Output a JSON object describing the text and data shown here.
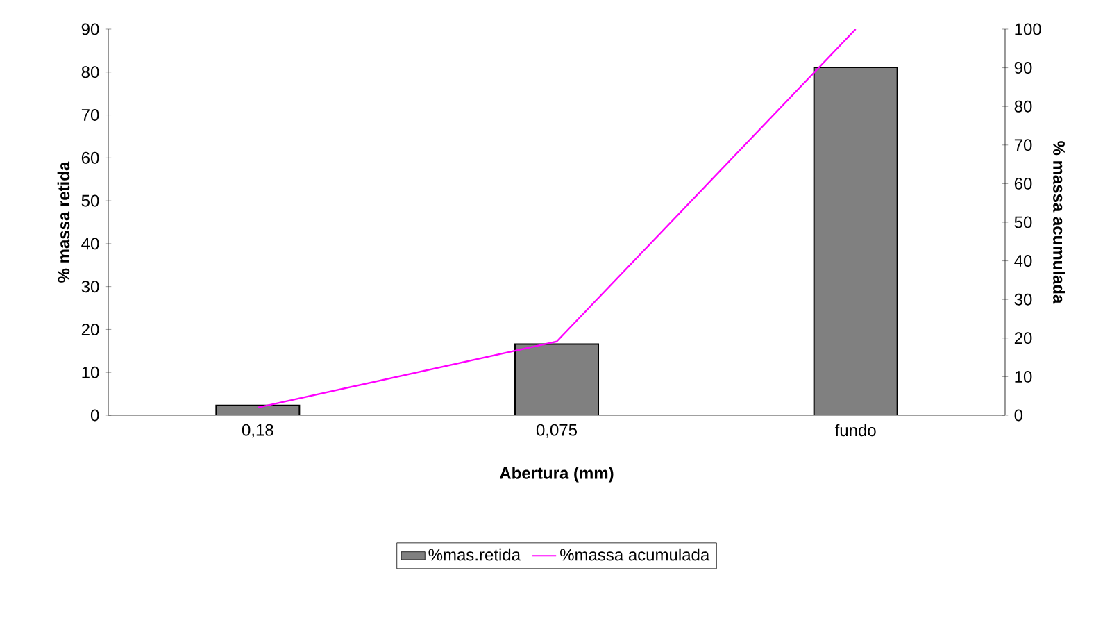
{
  "chart_data": {
    "type": "bar",
    "xlabel": "Abertura (mm)",
    "ylabel": "% massa retida",
    "y2label": "% massa acumulada",
    "categories": [
      "0,18",
      "0,075",
      "fundo"
    ],
    "series": [
      {
        "name": "%mas.retida",
        "color": "#808080",
        "values": [
          2.3,
          16.6,
          81.1
        ]
      },
      {
        "name": "%massa acumulada",
        "type": "line",
        "axis": "y2",
        "color": "#ff00ff",
        "values": [
          2.0,
          19.1,
          100
        ]
      }
    ],
    "ylim": [
      0,
      90
    ],
    "yticks": [
      0,
      10,
      20,
      30,
      40,
      50,
      60,
      70,
      80,
      90
    ],
    "y2lim": [
      0,
      100
    ],
    "y2ticks": [
      0,
      10,
      20,
      30,
      40,
      50,
      60,
      70,
      80,
      90,
      100
    ],
    "legend": "bottom"
  }
}
